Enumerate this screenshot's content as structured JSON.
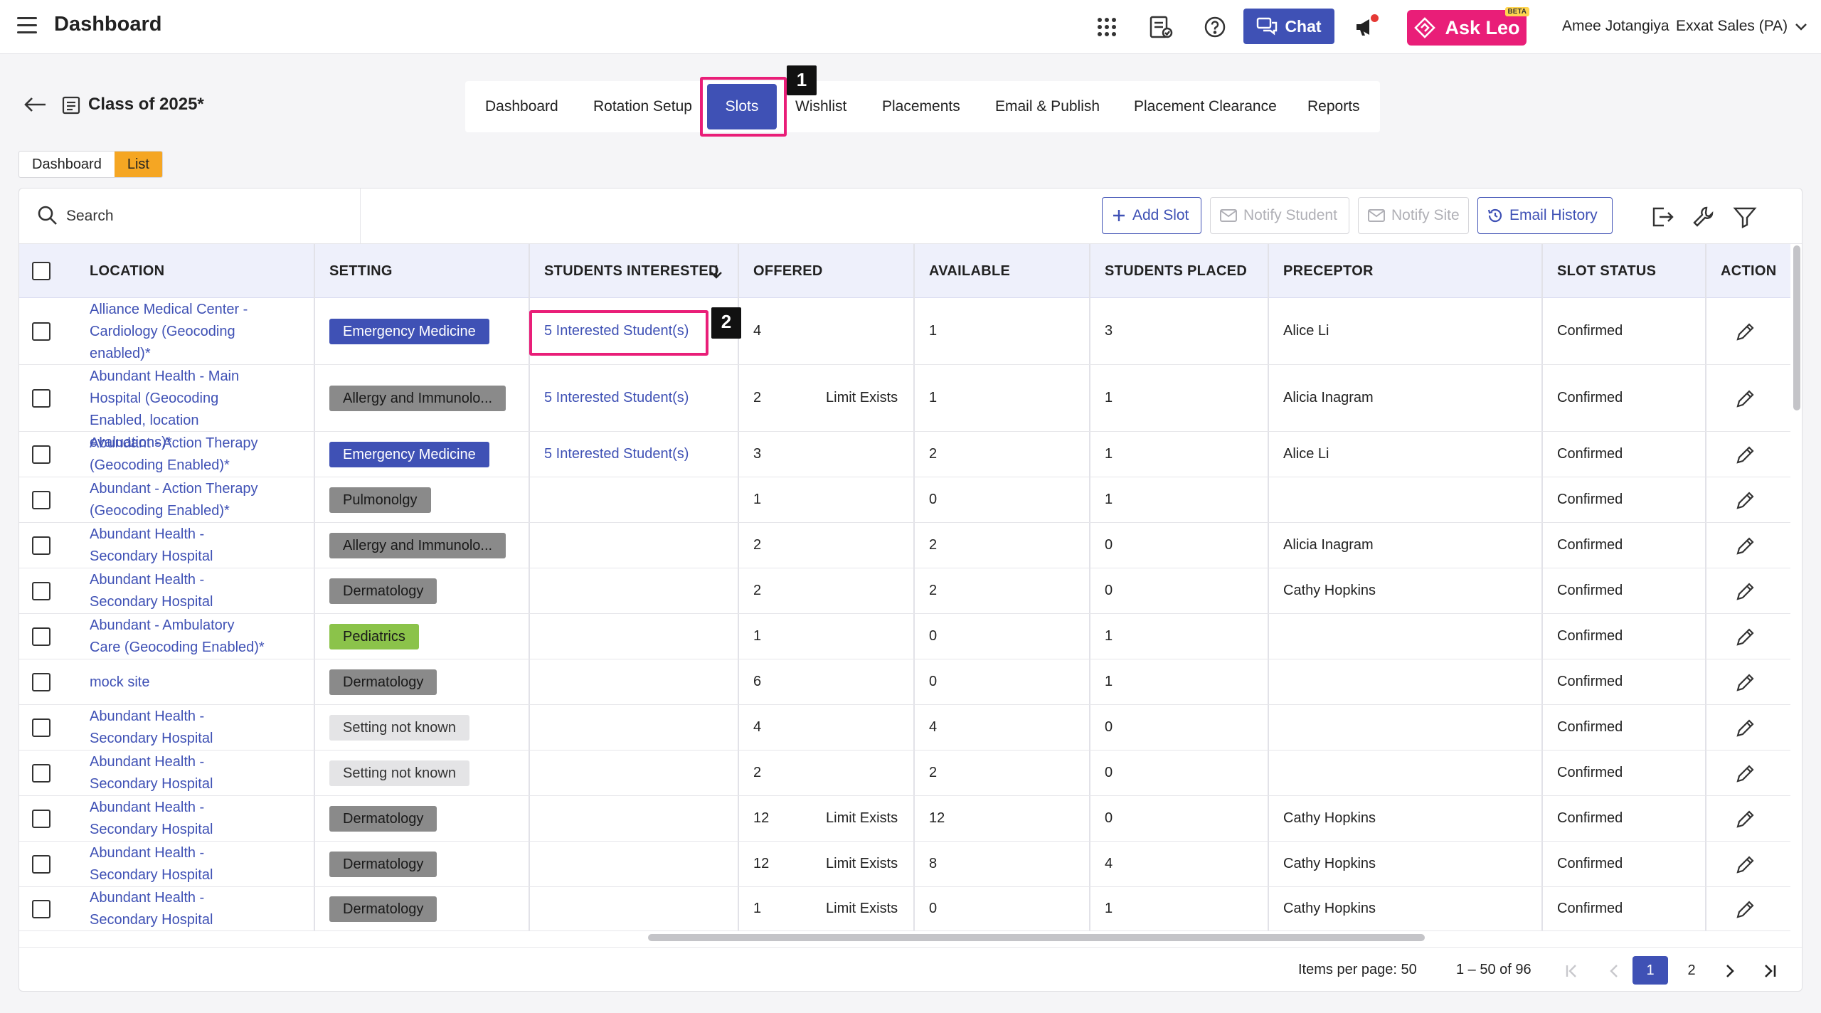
{
  "header": {
    "app_title": "Dashboard",
    "chat_label": "Chat",
    "ask_leo_label": "Ask Leo",
    "beta_label": "BETA",
    "user_name": "Amee Jotangiya",
    "org_name": "Exxat Sales (PA)"
  },
  "subheader": {
    "class_title": "Class of 2025*",
    "tabs": [
      {
        "label": "Dashboard"
      },
      {
        "label": "Rotation Setup"
      },
      {
        "label": "Slots",
        "active": true
      },
      {
        "label": "Wishlist"
      },
      {
        "label": "Placements"
      },
      {
        "label": "Email & Publish"
      },
      {
        "label": "Placement Clearance"
      },
      {
        "label": "Reports"
      }
    ],
    "view_toggle": {
      "dashboard": "Dashboard",
      "list": "List",
      "selected": "List"
    }
  },
  "annotations": {
    "marker_1": "1",
    "marker_2": "2"
  },
  "toolbar": {
    "search_placeholder": "Search",
    "add_slot": "Add Slot",
    "notify_student": "Notify Student",
    "notify_site": "Notify Site",
    "email_history": "Email History"
  },
  "table": {
    "columns": [
      "LOCATION",
      "SETTING",
      "STUDENTS INTERESTED",
      "OFFERED",
      "AVAILABLE",
      "STUDENTS PLACED",
      "PRECEPTOR",
      "SLOT STATUS",
      "ACTION"
    ],
    "rows": [
      {
        "location": "Alliance Medical Center - Cardiology (Geocoding enabled)*",
        "setting": "Emergency Medicine",
        "setting_color": "#3f51b5",
        "interested": "5 Interested Student(s)",
        "offered": "4",
        "limit": "",
        "available": "1",
        "placed": "3",
        "preceptor": "Alice Li",
        "status": "Confirmed"
      },
      {
        "location": "Abundant Health - Main Hospital (Geocoding Enabled, location evaluations)*",
        "setting": "Allergy and Immunolo...",
        "setting_color": "#8a8a8a",
        "interested": "5 Interested Student(s)",
        "offered": "2",
        "limit": "Limit Exists",
        "available": "1",
        "placed": "1",
        "preceptor": "Alicia Inagram",
        "status": "Confirmed"
      },
      {
        "location": "Abundant - Action Therapy (Geocoding Enabled)*",
        "setting": "Emergency Medicine",
        "setting_color": "#3f51b5",
        "interested": "5 Interested Student(s)",
        "offered": "3",
        "limit": "",
        "available": "2",
        "placed": "1",
        "preceptor": "Alice Li",
        "status": "Confirmed"
      },
      {
        "location": "Abundant - Action Therapy (Geocoding Enabled)*",
        "setting": "Pulmonolgy",
        "setting_color": "#8a8a8a",
        "interested": "",
        "offered": "1",
        "limit": "",
        "available": "0",
        "placed": "1",
        "preceptor": "",
        "status": "Confirmed"
      },
      {
        "location": "Abundant Health - Secondary Hospital",
        "setting": "Allergy and Immunolo...",
        "setting_color": "#8a8a8a",
        "interested": "",
        "offered": "2",
        "limit": "",
        "available": "2",
        "placed": "0",
        "preceptor": "Alicia Inagram",
        "status": "Confirmed"
      },
      {
        "location": "Abundant Health - Secondary Hospital",
        "setting": "Dermatology",
        "setting_color": "#8a8a8a",
        "interested": "",
        "offered": "2",
        "limit": "",
        "available": "2",
        "placed": "0",
        "preceptor": "Cathy Hopkins",
        "status": "Confirmed"
      },
      {
        "location": "Abundant - Ambulatory Care (Geocoding Enabled)*",
        "setting": "Pediatrics",
        "setting_color": "#8bc34a",
        "interested": "",
        "offered": "1",
        "limit": "",
        "available": "0",
        "placed": "1",
        "preceptor": "",
        "status": "Confirmed"
      },
      {
        "location": "mock site",
        "setting": "Dermatology",
        "setting_color": "#8a8a8a",
        "interested": "",
        "offered": "6",
        "limit": "",
        "available": "0",
        "placed": "1",
        "preceptor": "",
        "status": "Confirmed"
      },
      {
        "location": "Abundant Health - Secondary Hospital",
        "setting": "Setting not known",
        "setting_color": "#e4e4e6",
        "interested": "",
        "offered": "4",
        "limit": "",
        "available": "4",
        "placed": "0",
        "preceptor": "",
        "status": "Confirmed"
      },
      {
        "location": "Abundant Health - Secondary Hospital",
        "setting": "Setting not known",
        "setting_color": "#e4e4e6",
        "interested": "",
        "offered": "2",
        "limit": "",
        "available": "2",
        "placed": "0",
        "preceptor": "",
        "status": "Confirmed"
      },
      {
        "location": "Abundant Health - Secondary Hospital",
        "setting": "Dermatology",
        "setting_color": "#8a8a8a",
        "interested": "",
        "offered": "12",
        "limit": "Limit Exists",
        "available": "12",
        "placed": "0",
        "preceptor": "Cathy Hopkins",
        "status": "Confirmed"
      },
      {
        "location": "Abundant Health - Secondary Hospital",
        "setting": "Dermatology",
        "setting_color": "#8a8a8a",
        "interested": "",
        "offered": "12",
        "limit": "Limit Exists",
        "available": "8",
        "placed": "4",
        "preceptor": "Cathy Hopkins",
        "status": "Confirmed"
      },
      {
        "location": "Abundant Health - Secondary Hospital",
        "setting": "Dermatology",
        "setting_color": "#8a8a8a",
        "interested": "",
        "offered": "1",
        "limit": "Limit Exists",
        "available": "0",
        "placed": "1",
        "preceptor": "Cathy Hopkins",
        "status": "Confirmed"
      }
    ]
  },
  "pagination": {
    "items_per_page": "Items per page: 50",
    "range": "1 – 50 of 96",
    "pages": [
      "1",
      "2"
    ],
    "current": "1"
  },
  "colors": {
    "accent": "#3f51b5",
    "highlight": "#e91e78",
    "list_toggle": "#f5a623"
  }
}
